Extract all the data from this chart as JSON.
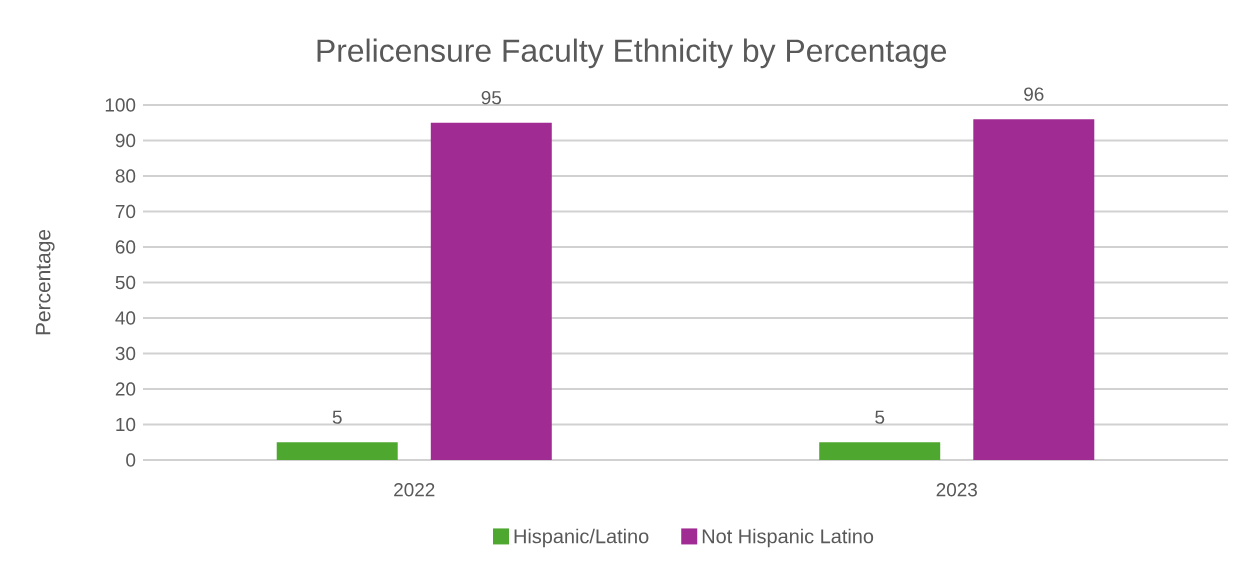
{
  "chart_data": {
    "type": "bar",
    "title": "Prelicensure Faculty Ethnicity by Percentage",
    "ylabel": "Percentage",
    "categories": [
      "2022",
      "2023"
    ],
    "series": [
      {
        "name": "Hispanic/Latino",
        "color": "#4ea72e",
        "values": [
          5,
          5
        ]
      },
      {
        "name": "Not Hispanic Latino",
        "color": "#a02b93",
        "values": [
          95,
          96
        ]
      }
    ],
    "ylim": [
      0,
      100
    ],
    "yticks": [
      0,
      10,
      20,
      30,
      40,
      50,
      60,
      70,
      80,
      90,
      100
    ],
    "grid": "y",
    "legend": "bottom",
    "data_labels": true
  }
}
